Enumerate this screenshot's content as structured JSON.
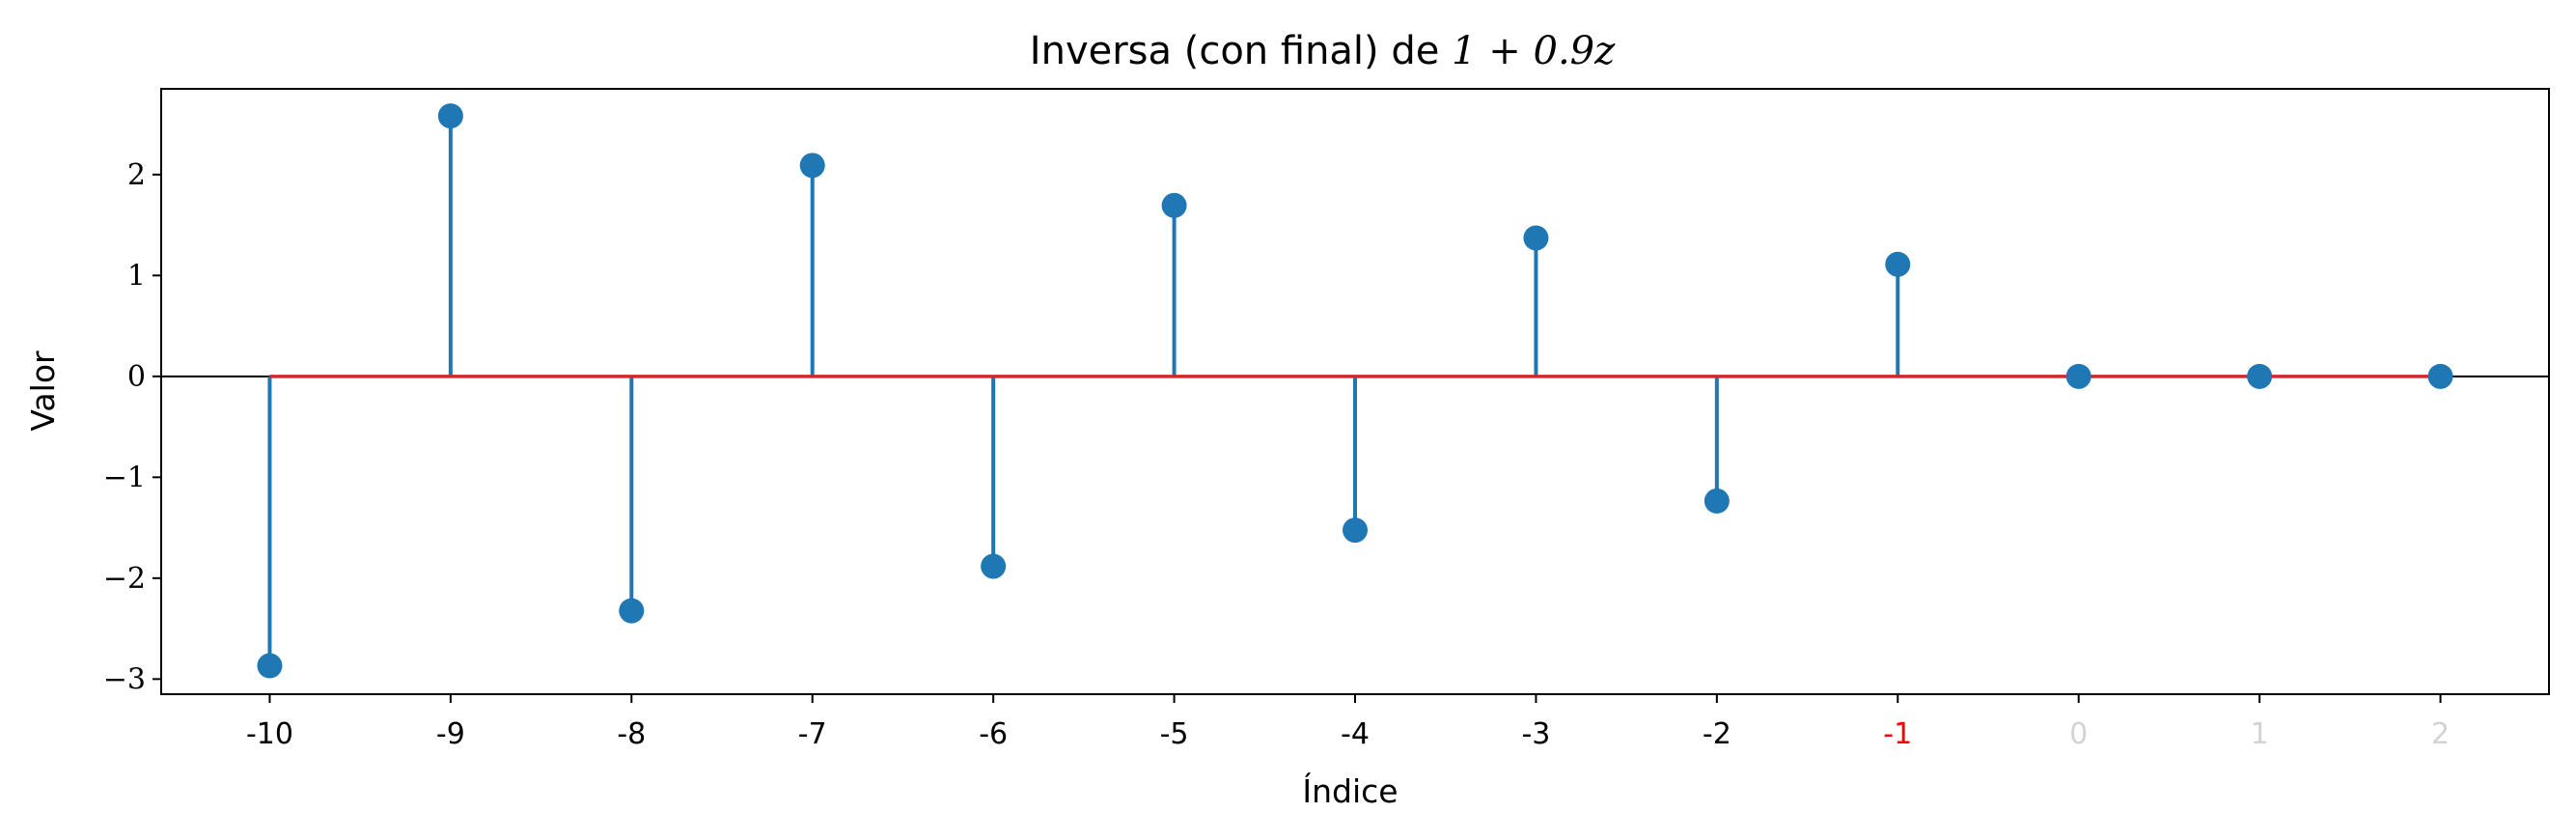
{
  "chart_data": {
    "type": "stem",
    "title": "Inversa (con final) de ",
    "title_math": "1 + 0.9z",
    "xlabel": "Índice",
    "ylabel": "Valor",
    "x": [
      -10,
      -9,
      -8,
      -7,
      -6,
      -5,
      -4,
      -3,
      -2,
      -1,
      0,
      1,
      2
    ],
    "x_tick_labels": [
      "-10",
      "-9",
      "-8",
      "-7",
      "-6",
      "-5",
      "-4",
      "-3",
      "-2",
      "-1",
      "0",
      "1",
      "2"
    ],
    "x_tick_colors": [
      "#000000",
      "#000000",
      "#000000",
      "#000000",
      "#000000",
      "#000000",
      "#000000",
      "#000000",
      "#000000",
      "#ff0000",
      "#d3d3d3",
      "#d3d3d3",
      "#d3d3d3"
    ],
    "values": [
      -2.868,
      2.581,
      -2.323,
      2.091,
      -1.882,
      1.694,
      -1.524,
      1.372,
      -1.235,
      1.111,
      0,
      0,
      0
    ],
    "xlim": [
      -10.6,
      2.6
    ],
    "ylim": [
      -3.15,
      2.85
    ],
    "y_ticks": [
      -3,
      -2,
      -1,
      0,
      1,
      2
    ],
    "y_tick_labels": [
      "−3",
      "−2",
      "−1",
      "0",
      "1",
      "2"
    ],
    "stem_color": "#1f77b4",
    "baseline_color": "#d62728",
    "zero_line_color": "#000000"
  }
}
